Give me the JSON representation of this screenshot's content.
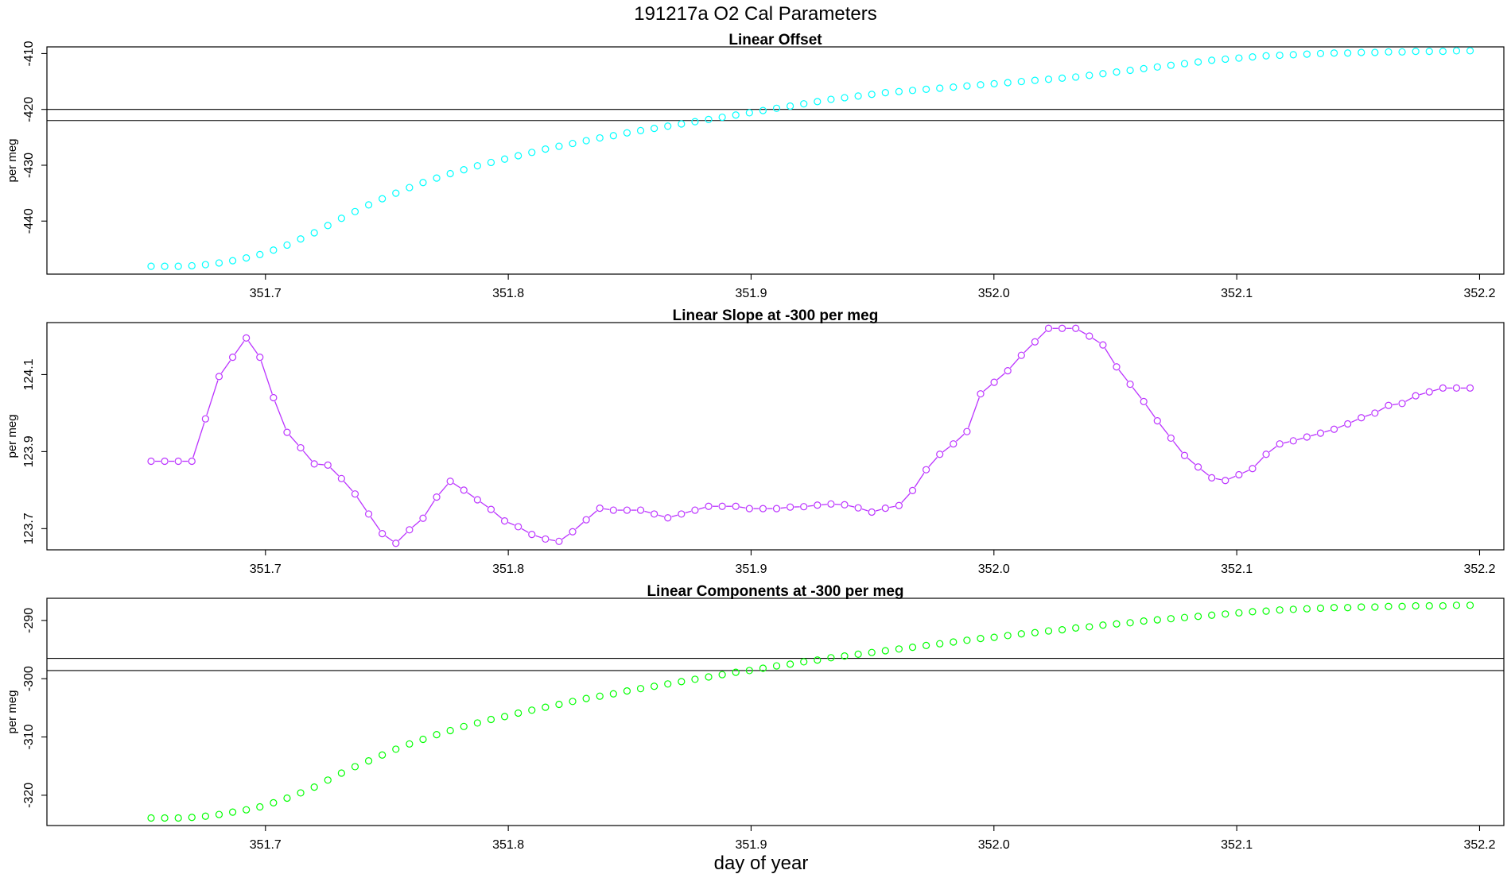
{
  "figure": {
    "title": "191217a   O2 Cal Parameters",
    "xlabel": "day of year"
  },
  "chart_data": [
    {
      "type": "scatter",
      "title": "Linear Offset",
      "xlabel": "day of year",
      "ylabel": "per meg",
      "color": "#00ffff",
      "xlim": [
        351.61,
        352.21
      ],
      "ylim": [
        -449.5,
        -408.8
      ],
      "xticks": [
        "351.7",
        "351.8",
        "351.9",
        "352.0",
        "352.1",
        "352.2"
      ],
      "yticks": [
        "-410",
        "-420",
        "-430",
        "-440"
      ],
      "hlines": [
        -420.0,
        -422.0
      ],
      "x": [
        351.6529,
        351.6585,
        351.6641,
        351.6697,
        351.6753,
        351.6809,
        351.6865,
        351.6921,
        351.6977,
        351.7033,
        351.7089,
        351.7145,
        351.7201,
        351.7257,
        351.7313,
        351.7369,
        351.7425,
        351.7481,
        351.7537,
        351.7593,
        351.7649,
        351.7705,
        351.7761,
        351.7817,
        351.7873,
        351.7929,
        351.7985,
        351.8041,
        351.8097,
        351.8153,
        351.8209,
        351.8265,
        351.8321,
        351.8377,
        351.8433,
        351.8489,
        351.8545,
        351.8601,
        351.8657,
        351.8713,
        351.8769,
        351.8825,
        351.8881,
        351.8937,
        351.8993,
        351.9049,
        351.9105,
        351.9161,
        351.9217,
        351.9273,
        351.9329,
        351.9385,
        351.9441,
        351.9497,
        351.9553,
        351.9609,
        351.9665,
        351.9721,
        351.9777,
        351.9833,
        351.9889,
        351.9945,
        352.0001,
        352.0057,
        352.0113,
        352.0169,
        352.0225,
        352.0281,
        352.0337,
        352.0393,
        352.0449,
        352.0505,
        352.0561,
        352.0617,
        352.0673,
        352.0729,
        352.0785,
        352.0841,
        352.0897,
        352.0953,
        352.1009,
        352.1065,
        352.1121,
        352.1177,
        352.1233,
        352.1289,
        352.1345,
        352.1401,
        352.1457,
        352.1513,
        352.1569,
        352.1625,
        352.1681,
        352.1737,
        352.1793,
        352.1849,
        352.1905,
        352.1961
      ],
      "y": [
        -448.1,
        -448.1,
        -448.1,
        -448.0,
        -447.8,
        -447.5,
        -447.1,
        -446.6,
        -446.0,
        -445.2,
        -444.3,
        -443.2,
        -442.1,
        -440.8,
        -439.5,
        -438.3,
        -437.1,
        -436.0,
        -435.0,
        -434.0,
        -433.1,
        -432.3,
        -431.5,
        -430.8,
        -430.1,
        -429.5,
        -428.9,
        -428.3,
        -427.7,
        -427.1,
        -426.6,
        -426.1,
        -425.6,
        -425.1,
        -424.7,
        -424.2,
        -423.8,
        -423.4,
        -423.0,
        -422.6,
        -422.2,
        -421.8,
        -421.4,
        -421.0,
        -420.6,
        -420.2,
        -419.8,
        -419.4,
        -419.0,
        -418.6,
        -418.2,
        -417.9,
        -417.6,
        -417.3,
        -417.0,
        -416.8,
        -416.6,
        -416.4,
        -416.2,
        -416.0,
        -415.8,
        -415.6,
        -415.4,
        -415.2,
        -415.0,
        -414.8,
        -414.6,
        -414.4,
        -414.2,
        -413.9,
        -413.6,
        -413.3,
        -413.0,
        -412.7,
        -412.4,
        -412.1,
        -411.8,
        -411.5,
        -411.2,
        -411.0,
        -410.8,
        -410.6,
        -410.4,
        -410.3,
        -410.2,
        -410.1,
        -410.0,
        -409.9,
        -409.9,
        -409.8,
        -409.8,
        -409.7,
        -409.7,
        -409.6,
        -409.6,
        -409.6,
        -409.5,
        -409.5
      ]
    },
    {
      "type": "line",
      "title": "Linear Slope at -300 per meg",
      "xlabel": "day of year",
      "ylabel": "per meg",
      "color": "#bb33ff",
      "xlim": [
        351.61,
        352.21
      ],
      "ylim": [
        123.645,
        124.235
      ],
      "xticks": [
        "351.7",
        "351.8",
        "351.9",
        "352.0",
        "352.1",
        "352.2"
      ],
      "yticks": [
        "123.7",
        "123.9",
        "124.1"
      ],
      "hlines": [],
      "x": [
        351.6529,
        351.6585,
        351.6641,
        351.6697,
        351.6753,
        351.6809,
        351.6865,
        351.6921,
        351.6977,
        351.7033,
        351.7089,
        351.7145,
        351.7201,
        351.7257,
        351.7313,
        351.7369,
        351.7425,
        351.7481,
        351.7537,
        351.7593,
        351.7649,
        351.7705,
        351.7761,
        351.7817,
        351.7873,
        351.7929,
        351.7985,
        351.8041,
        351.8097,
        351.8153,
        351.8209,
        351.8265,
        351.8321,
        351.8377,
        351.8433,
        351.8489,
        351.8545,
        351.8601,
        351.8657,
        351.8713,
        351.8769,
        351.8825,
        351.8881,
        351.8937,
        351.8993,
        351.9049,
        351.9105,
        351.9161,
        351.9217,
        351.9273,
        351.9329,
        351.9385,
        351.9441,
        351.9497,
        351.9553,
        351.9609,
        351.9665,
        351.9721,
        351.9777,
        351.9833,
        351.9889,
        351.9945,
        352.0001,
        352.0057,
        352.0113,
        352.0169,
        352.0225,
        352.0281,
        352.0337,
        352.0393,
        352.0449,
        352.0505,
        352.0561,
        352.0617,
        352.0673,
        352.0729,
        352.0785,
        352.0841,
        352.0897,
        352.0953,
        352.1009,
        352.1065,
        352.1121,
        352.1177,
        352.1233,
        352.1289,
        352.1345,
        352.1401,
        352.1457,
        352.1513,
        352.1569,
        352.1625,
        352.1681,
        352.1737,
        352.1793,
        352.1849,
        352.1905,
        352.1961
      ],
      "y": [
        123.875,
        123.875,
        123.875,
        123.875,
        123.985,
        124.095,
        124.145,
        124.195,
        124.145,
        124.04,
        123.95,
        123.91,
        123.868,
        123.865,
        123.83,
        123.79,
        123.738,
        123.687,
        123.662,
        123.697,
        123.727,
        123.782,
        123.823,
        123.8,
        123.775,
        123.75,
        123.72,
        123.705,
        123.685,
        123.673,
        123.667,
        123.692,
        123.723,
        123.753,
        123.748,
        123.748,
        123.748,
        123.738,
        123.728,
        123.738,
        123.748,
        123.758,
        123.758,
        123.758,
        123.752,
        123.752,
        123.752,
        123.756,
        123.757,
        123.761,
        123.764,
        123.762,
        123.754,
        123.743,
        123.753,
        123.76,
        123.799,
        123.853,
        123.893,
        123.92,
        123.952,
        124.05,
        124.08,
        124.11,
        124.15,
        124.185,
        124.22,
        124.22,
        124.22,
        124.2,
        124.177,
        124.12,
        124.075,
        124.03,
        123.98,
        123.935,
        123.89,
        123.86,
        123.832,
        123.825,
        123.84,
        123.856,
        123.893,
        123.92,
        123.928,
        123.938,
        123.948,
        123.958,
        123.972,
        123.988,
        124.0,
        124.02,
        124.025,
        124.045,
        124.055,
        124.065,
        124.065,
        124.065
      ]
    },
    {
      "type": "scatter",
      "title": "Linear Components at -300 per meg",
      "xlabel": "day of year",
      "ylabel": "per meg",
      "color": "#00ff00",
      "xlim": [
        351.61,
        352.21
      ],
      "ylim": [
        -325.2,
        -286.2
      ],
      "xticks": [
        "351.7",
        "351.8",
        "351.9",
        "352.0",
        "352.1",
        "352.2"
      ],
      "yticks": [
        "-290",
        "-300",
        "-310",
        "-320"
      ],
      "hlines": [
        -296.5,
        -298.6
      ],
      "x": [
        351.6529,
        351.6585,
        351.6641,
        351.6697,
        351.6753,
        351.6809,
        351.6865,
        351.6921,
        351.6977,
        351.7033,
        351.7089,
        351.7145,
        351.7201,
        351.7257,
        351.7313,
        351.7369,
        351.7425,
        351.7481,
        351.7537,
        351.7593,
        351.7649,
        351.7705,
        351.7761,
        351.7817,
        351.7873,
        351.7929,
        351.7985,
        351.8041,
        351.8097,
        351.8153,
        351.8209,
        351.8265,
        351.8321,
        351.8377,
        351.8433,
        351.8489,
        351.8545,
        351.8601,
        351.8657,
        351.8713,
        351.8769,
        351.8825,
        351.8881,
        351.8937,
        351.8993,
        351.9049,
        351.9105,
        351.9161,
        351.9217,
        351.9273,
        351.9329,
        351.9385,
        351.9441,
        351.9497,
        351.9553,
        351.9609,
        351.9665,
        351.9721,
        351.9777,
        351.9833,
        351.9889,
        351.9945,
        352.0001,
        352.0057,
        352.0113,
        352.0169,
        352.0225,
        352.0281,
        352.0337,
        352.0393,
        352.0449,
        352.0505,
        352.0561,
        352.0617,
        352.0673,
        352.0729,
        352.0785,
        352.0841,
        352.0897,
        352.0953,
        352.1009,
        352.1065,
        352.1121,
        352.1177,
        352.1233,
        352.1289,
        352.1345,
        352.1401,
        352.1457,
        352.1513,
        352.1569,
        352.1625,
        352.1681,
        352.1737,
        352.1793,
        352.1849,
        352.1905,
        352.1961
      ],
      "y": [
        -323.9,
        -323.9,
        -323.9,
        -323.8,
        -323.6,
        -323.3,
        -322.9,
        -322.5,
        -322.0,
        -321.3,
        -320.5,
        -319.6,
        -318.6,
        -317.4,
        -316.2,
        -315.1,
        -314.1,
        -313.1,
        -312.1,
        -311.2,
        -310.4,
        -309.6,
        -308.9,
        -308.2,
        -307.6,
        -307.0,
        -306.5,
        -305.9,
        -305.4,
        -304.9,
        -304.4,
        -303.9,
        -303.4,
        -303.0,
        -302.6,
        -302.1,
        -301.7,
        -301.3,
        -300.9,
        -300.5,
        -300.1,
        -299.7,
        -299.3,
        -298.9,
        -298.6,
        -298.2,
        -297.8,
        -297.5,
        -297.1,
        -296.8,
        -296.4,
        -296.1,
        -295.8,
        -295.5,
        -295.2,
        -294.9,
        -294.6,
        -294.3,
        -294.0,
        -293.7,
        -293.4,
        -293.1,
        -292.9,
        -292.6,
        -292.3,
        -292.1,
        -291.8,
        -291.6,
        -291.3,
        -291.1,
        -290.8,
        -290.6,
        -290.4,
        -290.1,
        -289.9,
        -289.7,
        -289.5,
        -289.3,
        -289.1,
        -288.9,
        -288.7,
        -288.5,
        -288.4,
        -288.2,
        -288.1,
        -288.0,
        -287.9,
        -287.8,
        -287.8,
        -287.7,
        -287.7,
        -287.6,
        -287.6,
        -287.5,
        -287.5,
        -287.5,
        -287.4,
        -287.4
      ]
    }
  ]
}
